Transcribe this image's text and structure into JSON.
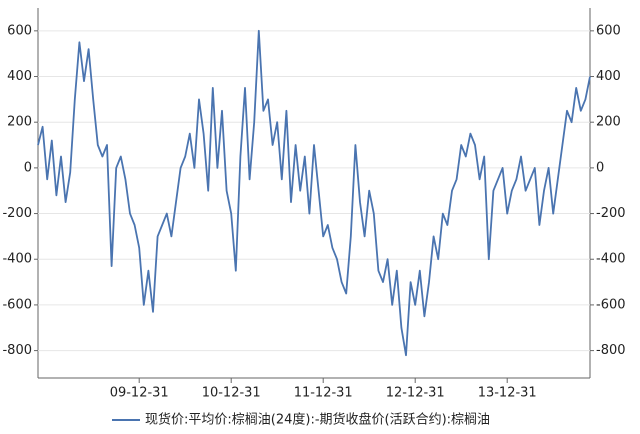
{
  "chart_data": {
    "type": "line",
    "categories": [
      null,
      null,
      null,
      null,
      null,
      null,
      null,
      null,
      null,
      null,
      null,
      null,
      null,
      null,
      null,
      null,
      null,
      null,
      null,
      null,
      null,
      null,
      "09-12-31",
      null,
      null,
      null,
      null,
      null,
      null,
      null,
      null,
      null,
      null,
      null,
      null,
      null,
      null,
      null,
      null,
      null,
      null,
      null,
      "10-12-31",
      null,
      null,
      null,
      null,
      null,
      null,
      null,
      null,
      null,
      null,
      null,
      null,
      null,
      null,
      null,
      null,
      null,
      null,
      null,
      "11-12-31",
      null,
      null,
      null,
      null,
      null,
      null,
      null,
      null,
      null,
      null,
      null,
      null,
      null,
      null,
      null,
      null,
      null,
      null,
      null,
      "12-12-31",
      null,
      null,
      null,
      null,
      null,
      null,
      null,
      null,
      null,
      null,
      null,
      null,
      null,
      null,
      null,
      null,
      null,
      null,
      null,
      "13-12-31",
      null,
      null,
      null,
      null,
      null,
      null,
      null,
      null,
      null,
      null,
      null,
      null,
      null,
      null,
      null,
      null,
      null,
      null
    ],
    "series": [
      {
        "name": "现货价:平均价:棕榈油(24度):-期货收盘价(活跃合约):棕榈油",
        "color": "#4a74b0",
        "values": [
          100,
          180,
          -50,
          120,
          -120,
          50,
          -150,
          -20,
          300,
          550,
          380,
          520,
          300,
          100,
          50,
          100,
          -430,
          0,
          50,
          -50,
          -200,
          -250,
          -350,
          -600,
          -450,
          -630,
          -300,
          -250,
          -200,
          -300,
          -150,
          0,
          50,
          150,
          0,
          300,
          150,
          -100,
          350,
          0,
          250,
          -100,
          -200,
          -450,
          50,
          350,
          -50,
          200,
          600,
          250,
          300,
          100,
          200,
          -50,
          250,
          -150,
          100,
          -100,
          50,
          -200,
          100,
          -100,
          -300,
          -250,
          -350,
          -400,
          -500,
          -550,
          -300,
          100,
          -150,
          -300,
          -100,
          -200,
          -450,
          -500,
          -400,
          -600,
          -450,
          -700,
          -820,
          -500,
          -600,
          -450,
          -650,
          -500,
          -300,
          -400,
          -200,
          -250,
          -100,
          -50,
          100,
          50,
          150,
          100,
          -50,
          50,
          -400,
          -100,
          -50,
          0,
          -200,
          -100,
          -50,
          50,
          -100,
          -50,
          0,
          -250,
          -100,
          0,
          -200,
          -50,
          100,
          250,
          200,
          350,
          250,
          300,
          400
        ]
      }
    ],
    "ylim": [
      -920,
      700
    ],
    "yticks": [
      600,
      400,
      200,
      0,
      -200,
      -400,
      -600,
      -800
    ],
    "grid": true,
    "legend": "bottom"
  }
}
